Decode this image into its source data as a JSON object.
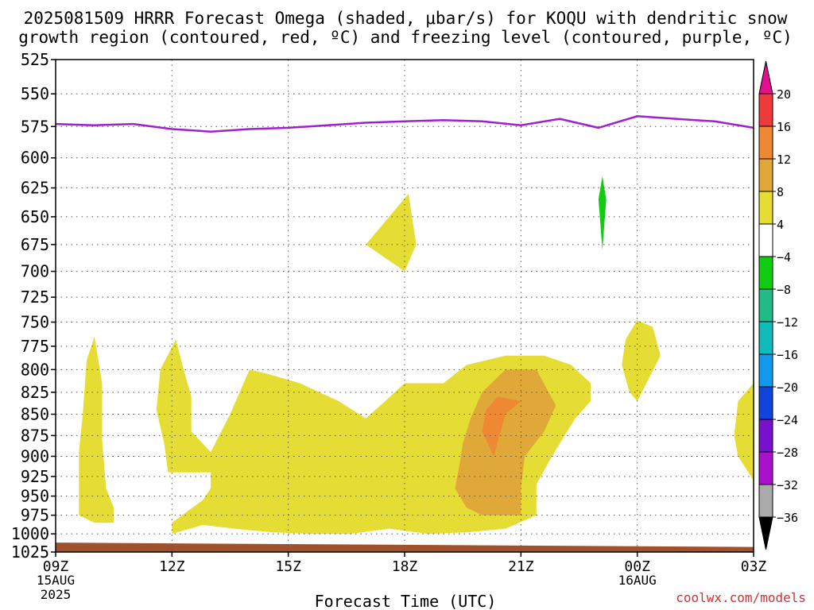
{
  "title_line1": "2025081509 HRRR Forecast Omega (shaded, μbar/s) for KOQU with dendritic snow",
  "title_line2": "growth region (contoured, red, ºC) and freezing level (contoured, purple, ºC)",
  "xlabel": "Forecast Time (UTC)",
  "watermark": "coolwx.com/models",
  "chart_data": {
    "type": "area",
    "x_range": [
      9,
      27
    ],
    "y_range": [
      525,
      1025
    ],
    "y_scale": "log",
    "y_inverted": true,
    "grid": true,
    "y_ticks": [
      525,
      550,
      575,
      600,
      625,
      650,
      675,
      700,
      725,
      750,
      775,
      800,
      825,
      850,
      875,
      900,
      925,
      950,
      975,
      1000,
      1025
    ],
    "x_ticks": [
      {
        "t": 9,
        "label": "09Z",
        "sub1": "15AUG",
        "sub2": "2025"
      },
      {
        "t": 12,
        "label": "12Z"
      },
      {
        "t": 15,
        "label": "15Z"
      },
      {
        "t": 18,
        "label": "18Z"
      },
      {
        "t": 21,
        "label": "21Z"
      },
      {
        "t": 24,
        "label": "00Z",
        "sub1": "16AUG"
      },
      {
        "t": 27,
        "label": "03Z"
      }
    ],
    "freezing_level": {
      "color": "#a020d0",
      "t": [
        9,
        10,
        11,
        12,
        13,
        14,
        15,
        16,
        17,
        18,
        19,
        20,
        21,
        22,
        23,
        24,
        25,
        26,
        27
      ],
      "p": [
        573,
        574,
        573,
        577,
        579,
        577,
        576,
        574,
        572,
        571,
        570,
        571,
        574,
        569,
        576,
        567,
        569,
        571,
        576
      ]
    },
    "omega_regions": [
      {
        "color": "#e5dd33",
        "points": [
          [
            9.6,
            975
          ],
          [
            10.0,
            985
          ],
          [
            10.5,
            985
          ],
          [
            10.5,
            965
          ],
          [
            10.3,
            940
          ],
          [
            10.2,
            880
          ],
          [
            10.2,
            815
          ],
          [
            10.0,
            765
          ],
          [
            9.8,
            790
          ],
          [
            9.7,
            850
          ],
          [
            9.6,
            895
          ],
          [
            9.6,
            955
          ]
        ]
      },
      {
        "color": "#e5dd33",
        "points": [
          [
            12.0,
            985
          ],
          [
            12.0,
            1000
          ],
          [
            12.8,
            988
          ],
          [
            13.6,
            993
          ],
          [
            14.6,
            998
          ],
          [
            15.6,
            1000
          ],
          [
            16.6,
            1000
          ],
          [
            17.6,
            993
          ],
          [
            18.6,
            1000
          ],
          [
            19.6,
            998
          ],
          [
            20.6,
            993
          ],
          [
            21.4,
            975
          ],
          [
            21.4,
            935
          ],
          [
            21.8,
            900
          ],
          [
            22.4,
            855
          ],
          [
            22.8,
            835
          ],
          [
            22.8,
            815
          ],
          [
            22.3,
            795
          ],
          [
            21.6,
            785
          ],
          [
            20.6,
            785
          ],
          [
            19.6,
            795
          ],
          [
            19.0,
            815
          ],
          [
            18.0,
            815
          ],
          [
            17.5,
            835
          ],
          [
            17.0,
            855
          ],
          [
            16.3,
            835
          ],
          [
            15.3,
            815
          ],
          [
            14.5,
            805
          ],
          [
            14.0,
            800
          ],
          [
            13.5,
            850
          ],
          [
            13.0,
            895
          ],
          [
            12.5,
            870
          ],
          [
            12.5,
            830
          ],
          [
            12.3,
            800
          ],
          [
            12.1,
            768
          ],
          [
            11.7,
            800
          ],
          [
            11.6,
            845
          ],
          [
            11.8,
            885
          ],
          [
            11.9,
            920
          ],
          [
            13.0,
            920
          ],
          [
            13.0,
            940
          ],
          [
            12.8,
            955
          ]
        ]
      },
      {
        "color": "#e5dd33",
        "points": [
          [
            17.0,
            675
          ],
          [
            18.0,
            700
          ],
          [
            18.3,
            675
          ],
          [
            18.1,
            630
          ]
        ]
      },
      {
        "color": "#e5dd33",
        "points": [
          [
            23.6,
            795
          ],
          [
            23.8,
            825
          ],
          [
            24.0,
            835
          ],
          [
            24.6,
            785
          ],
          [
            24.4,
            755
          ],
          [
            24.0,
            748
          ],
          [
            23.7,
            768
          ]
        ]
      },
      {
        "color": "#e5dd33",
        "points": [
          [
            27.0,
            815
          ],
          [
            26.6,
            835
          ],
          [
            26.5,
            875
          ],
          [
            26.6,
            900
          ],
          [
            27.0,
            930
          ]
        ]
      },
      {
        "color": "#e0a838",
        "points": [
          [
            19.3,
            940
          ],
          [
            19.6,
            965
          ],
          [
            20.0,
            975
          ],
          [
            21.0,
            975
          ],
          [
            21.0,
            940
          ],
          [
            21.1,
            900
          ],
          [
            21.6,
            870
          ],
          [
            21.9,
            840
          ],
          [
            21.4,
            800
          ],
          [
            20.6,
            800
          ],
          [
            20.0,
            825
          ],
          [
            19.7,
            855
          ],
          [
            19.5,
            885
          ],
          [
            19.4,
            915
          ]
        ]
      },
      {
        "color": "#ef8833",
        "points": [
          [
            20.0,
            870
          ],
          [
            20.3,
            900
          ],
          [
            20.6,
            850
          ],
          [
            21.0,
            835
          ],
          [
            20.4,
            830
          ],
          [
            20.1,
            845
          ]
        ]
      },
      {
        "color": "#11cc11",
        "points": [
          [
            23.0,
            635
          ],
          [
            23.1,
            680
          ],
          [
            23.2,
            635
          ],
          [
            23.1,
            615
          ]
        ]
      }
    ],
    "ground": {
      "color": "#a0522d",
      "top_left_p": 1012,
      "top_right_p": 1018
    },
    "colorbar": {
      "labels": [
        "20",
        "16",
        "12",
        "8",
        "4",
        "−4",
        "−8",
        "−12",
        "−16",
        "−20",
        "−24",
        "−28",
        "−32",
        "−36"
      ],
      "colors": [
        "#e30f8e",
        "#ee3a3a",
        "#ef8833",
        "#e0a838",
        "#e5dd33",
        "#ffffff",
        "#11cc11",
        "#22bb88",
        "#11bbbb",
        "#1199ee",
        "#1144dd",
        "#7711cc",
        "#aa11cc",
        "#aaaaaa",
        "#000000"
      ]
    }
  }
}
